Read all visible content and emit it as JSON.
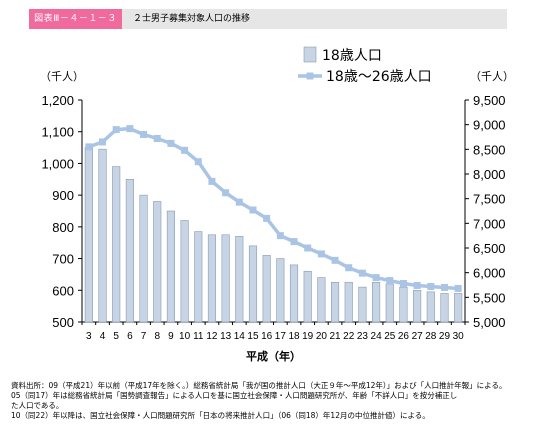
{
  "header": {
    "badge": "図表Ⅲ－４－１－３",
    "title": "２士男子募集対象人口の推移"
  },
  "colors": {
    "bar_fill": "#c6d4e6",
    "bar_stroke": "#8a9ab0",
    "line": "#a9c4e4",
    "header_badge": "#f06a9e",
    "header_bg": "#e6e6e6"
  },
  "chart_data": {
    "type": "bar+line",
    "xlabel": "平成（年）",
    "categories": [
      "3",
      "4",
      "5",
      "6",
      "7",
      "8",
      "9",
      "10",
      "11",
      "12",
      "13",
      "14",
      "15",
      "16",
      "17",
      "18",
      "19",
      "20",
      "21",
      "22",
      "23",
      "24",
      "25",
      "26",
      "27",
      "28",
      "29",
      "30"
    ],
    "left_unit": "（千人）",
    "right_unit": "（千人）",
    "left_axis": {
      "ylim": [
        500,
        1200
      ],
      "ticks": [
        "500",
        "600",
        "700",
        "800",
        "900",
        "1,000",
        "1,100",
        "1,200"
      ]
    },
    "right_axis": {
      "ylim": [
        5000,
        9500
      ],
      "ticks": [
        "5,000",
        "5,500",
        "6,000",
        "6,500",
        "7,000",
        "7,500",
        "8,000",
        "8,500",
        "9,000",
        "9,500"
      ]
    },
    "legend": {
      "placement": "top-center"
    },
    "series": [
      {
        "name": "18歳人口",
        "type": "bar",
        "axis": "left",
        "values": [
          1050,
          1045,
          990,
          950,
          900,
          880,
          850,
          820,
          785,
          775,
          775,
          770,
          740,
          710,
          700,
          680,
          660,
          640,
          625,
          625,
          610,
          625,
          620,
          610,
          600,
          595,
          590,
          590
        ]
      },
      {
        "name": "18歳～26歳人口",
        "type": "line",
        "axis": "right",
        "values": [
          8550,
          8650,
          8900,
          8920,
          8800,
          8720,
          8620,
          8480,
          8250,
          7850,
          7620,
          7430,
          7270,
          7100,
          6750,
          6630,
          6500,
          6380,
          6250,
          6100,
          5990,
          5900,
          5840,
          5780,
          5740,
          5720,
          5700,
          5680
        ]
      }
    ]
  },
  "notes": [
    "資料出所：09（平成21）年以前（平成17年を除く。）総務省統計局「我が国の推計人口（大正９年～平成12年）」および「人口推計年報」による。",
    "05（同17）年は総務省統計局「国勢調査報告」による人口を基に国立社会保障・人口問題研究所が、年齢「不詳人口」を按分補正し",
    "た人口である。",
    "10（同22）年以降は、国立社会保障・人口問題研究所「日本の将来推計人口」（06（同18）年12月の中位推計値）による。"
  ]
}
